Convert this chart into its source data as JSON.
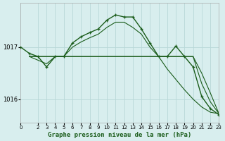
{
  "background_color": "#d8eeee",
  "grid_color": "#b8d8d8",
  "line_color": "#1a5c1a",
  "ylim": [
    1015.55,
    1017.85
  ],
  "xlim": [
    0,
    23
  ],
  "yticks": [
    1016.0,
    1017.0
  ],
  "xticks": [
    0,
    2,
    3,
    4,
    5,
    6,
    7,
    8,
    9,
    10,
    11,
    12,
    13,
    14,
    15,
    16,
    17,
    18,
    19,
    20,
    21,
    22,
    23
  ],
  "xlabel": "Graphe pression niveau de la mer (hPa)",
  "series_marked": {
    "x": [
      0,
      1,
      2,
      3,
      4,
      5,
      6,
      7,
      8,
      9,
      10,
      11,
      12,
      13,
      14,
      15,
      16,
      17,
      18,
      19,
      20,
      21,
      22,
      23
    ],
    "y": [
      1017.0,
      1016.88,
      1016.82,
      1016.62,
      1016.82,
      1016.82,
      1017.08,
      1017.2,
      1017.28,
      1017.35,
      1017.52,
      1017.62,
      1017.58,
      1017.58,
      1017.35,
      1017.08,
      1016.82,
      1016.82,
      1017.02,
      1016.82,
      1016.62,
      1016.05,
      1015.82,
      1015.7
    ]
  },
  "series_flat1": {
    "x": [
      1,
      2,
      3,
      4,
      5,
      6,
      7,
      8,
      9,
      10,
      11,
      12,
      13,
      14,
      15,
      16,
      17,
      18,
      19,
      20,
      21,
      22,
      23
    ],
    "y": [
      1016.82,
      1016.82,
      1016.82,
      1016.82,
      1016.82,
      1016.82,
      1016.82,
      1016.82,
      1016.82,
      1016.82,
      1016.82,
      1016.82,
      1016.82,
      1016.82,
      1016.82,
      1016.82,
      1016.82,
      1016.82,
      1016.82,
      1016.82,
      1016.5,
      1016.12,
      1015.72
    ]
  },
  "series_flat2": {
    "x": [
      1,
      2,
      3,
      4,
      5,
      6,
      7,
      8,
      9,
      10,
      11,
      12,
      13,
      14,
      15,
      16,
      17,
      18,
      19,
      20,
      21,
      22,
      23
    ],
    "y": [
      1016.82,
      1016.82,
      1016.82,
      1016.82,
      1016.82,
      1016.82,
      1016.82,
      1016.82,
      1016.82,
      1016.82,
      1016.82,
      1016.82,
      1016.82,
      1016.82,
      1016.82,
      1016.82,
      1016.82,
      1016.82,
      1016.82,
      1016.82,
      1016.3,
      1015.95,
      1015.72
    ]
  },
  "series_arc": {
    "x": [
      1,
      2,
      3,
      4,
      5,
      6,
      7,
      8,
      9,
      10,
      11,
      12,
      13,
      14,
      15,
      16,
      17,
      18,
      19,
      20,
      21,
      22,
      23
    ],
    "y": [
      1016.82,
      1016.75,
      1016.68,
      1016.82,
      1016.82,
      1017.0,
      1017.1,
      1017.18,
      1017.25,
      1017.38,
      1017.48,
      1017.48,
      1017.38,
      1017.25,
      1017.0,
      1016.82,
      1016.58,
      1016.38,
      1016.18,
      1016.0,
      1015.85,
      1015.75,
      1015.72
    ]
  }
}
